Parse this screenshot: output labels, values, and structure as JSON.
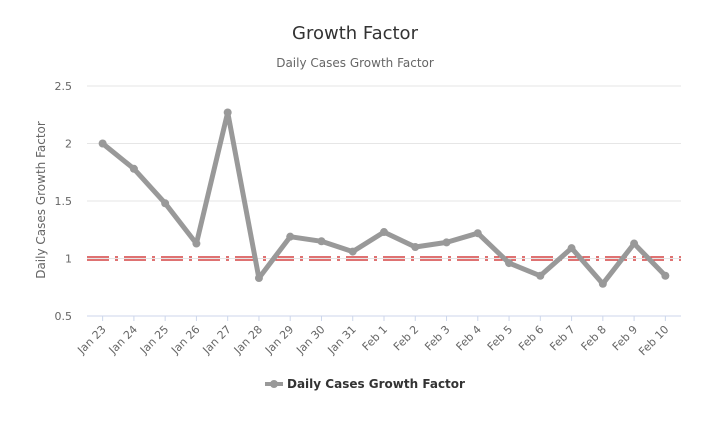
{
  "chart_data": {
    "type": "line",
    "title": "Growth Factor",
    "subtitle": "Daily Cases Growth Factor",
    "xlabel": "",
    "ylabel": "Daily Cases Growth Factor",
    "categories": [
      "Jan 23",
      "Jan 24",
      "Jan 25",
      "Jan 26",
      "Jan 27",
      "Jan 28",
      "Jan 29",
      "Jan 30",
      "Jan 31",
      "Feb 1",
      "Feb 2",
      "Feb 3",
      "Feb 4",
      "Feb 5",
      "Feb 6",
      "Feb 7",
      "Feb 8",
      "Feb 9",
      "Feb 10"
    ],
    "series": [
      {
        "name": "Daily Cases Growth Factor",
        "values": [
          2.0,
          1.78,
          1.48,
          1.13,
          2.27,
          0.83,
          1.19,
          1.15,
          1.06,
          1.23,
          1.1,
          1.14,
          1.22,
          0.96,
          0.85,
          1.09,
          0.78,
          1.13,
          0.85
        ]
      }
    ],
    "ylim": [
      0.5,
      2.5
    ],
    "yticks": [
      0.5,
      1,
      1.5,
      2,
      2.5
    ],
    "reference_line": {
      "value": 1
    },
    "grid": true,
    "legend": "bottom-center",
    "colors": {
      "series": "#999999",
      "reference": "#cc1f1f",
      "grid": "#e6e6e6",
      "text": "#666666",
      "title": "#333333"
    }
  }
}
